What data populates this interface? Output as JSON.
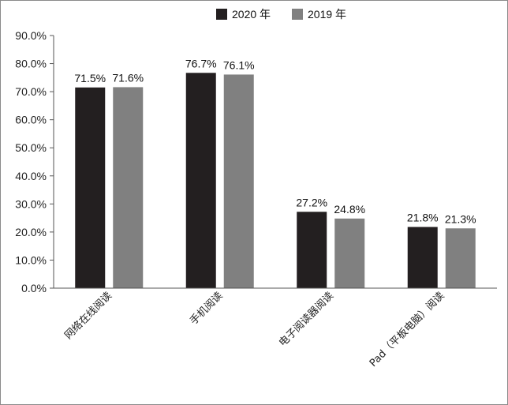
{
  "chart_data": {
    "type": "bar",
    "title": "",
    "xlabel": "",
    "ylabel": "",
    "categories": [
      "网络在线阅读",
      "手机阅读",
      "电子阅读器阅读",
      "Pad（平板电脑）阅读"
    ],
    "series": [
      {
        "name": "2020 年",
        "values": [
          71.5,
          76.7,
          27.2,
          21.8
        ],
        "labels": [
          "71.5%",
          "76.7%",
          "27.2%",
          "21.8%"
        ],
        "color": "#231f20"
      },
      {
        "name": "2019 年",
        "values": [
          71.6,
          76.1,
          24.8,
          21.3
        ],
        "labels": [
          "71.6%",
          "76.1%",
          "24.8%",
          "21.3%"
        ],
        "color": "#808080"
      }
    ],
    "ylim": [
      0,
      90
    ],
    "yticks": [
      0,
      10,
      20,
      30,
      40,
      50,
      60,
      70,
      80,
      90
    ],
    "ytick_labels": [
      "0.0%",
      "10.0%",
      "20.0%",
      "30.0%",
      "40.0%",
      "50.0%",
      "60.0%",
      "70.0%",
      "80.0%",
      "90.0%"
    ],
    "grid": false,
    "legend_position": "top-center"
  }
}
